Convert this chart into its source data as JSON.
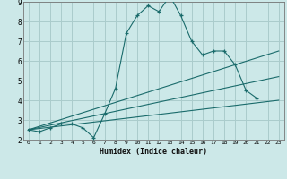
{
  "xlabel": "Humidex (Indice chaleur)",
  "xlim": [
    -0.5,
    23.5
  ],
  "ylim": [
    2,
    9
  ],
  "yticks": [
    2,
    3,
    4,
    5,
    6,
    7,
    8,
    9
  ],
  "xticks": [
    0,
    1,
    2,
    3,
    4,
    5,
    6,
    7,
    8,
    9,
    10,
    11,
    12,
    13,
    14,
    15,
    16,
    17,
    18,
    19,
    20,
    21,
    22,
    23
  ],
  "bg_color": "#cce8e8",
  "line_color": "#1a6b6b",
  "grid_color": "#aacccc",
  "series": [
    {
      "x": [
        0,
        1,
        2,
        3,
        4,
        5,
        6,
        7,
        8,
        9,
        10,
        11,
        12,
        13,
        14,
        15,
        16,
        17,
        18,
        19,
        20,
        21
      ],
      "y": [
        2.5,
        2.4,
        2.6,
        2.8,
        2.8,
        2.6,
        2.1,
        3.3,
        4.6,
        7.4,
        8.3,
        8.8,
        8.5,
        9.3,
        8.3,
        7.0,
        6.3,
        6.5,
        6.5,
        5.8,
        4.5,
        4.1
      ],
      "marker": true
    },
    {
      "x": [
        0,
        23
      ],
      "y": [
        2.5,
        6.5
      ],
      "marker": false
    },
    {
      "x": [
        0,
        23
      ],
      "y": [
        2.5,
        5.2
      ],
      "marker": false
    },
    {
      "x": [
        0,
        23
      ],
      "y": [
        2.5,
        4.0
      ],
      "marker": false
    }
  ]
}
